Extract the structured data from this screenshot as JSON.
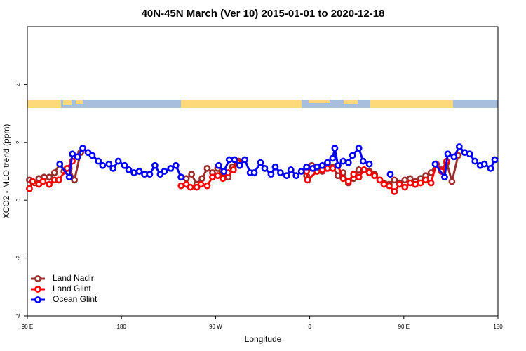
{
  "chart_data": {
    "type": "line",
    "title": "40N-45N March (Ver 10)   2015-01-01 to 2020-12-18",
    "xlabel": "Longitude",
    "ylabel": "XCO2 - MLO trend (ppm)",
    "xlim": [
      90,
      540
    ],
    "ylim": [
      -4,
      6
    ],
    "xticks": [
      {
        "value": 90,
        "label": "90 E"
      },
      180,
      {
        "value": 270,
        "label": "90 W"
      },
      {
        "value": 360,
        "label": "0"
      },
      {
        "value": 450,
        "label": "90 E"
      },
      {
        "value": 540,
        "label": "180"
      }
    ],
    "yticks": [
      -4,
      -2,
      0,
      2,
      4
    ],
    "legend": "bottom-left",
    "series": [
      {
        "name": "Land Nadir",
        "color": "#9b2d2d",
        "x": [
          92,
          97,
          101,
          106,
          111,
          116,
          121,
          125,
          130,
          135,
          141,
          190,
          237,
          242,
          247,
          252,
          257,
          262,
          267,
          272,
          277,
          282,
          286,
          292,
          320,
          357,
          362,
          367,
          372,
          377,
          382,
          387,
          392,
          397,
          402,
          407,
          412,
          417,
          422,
          427,
          431,
          436,
          441,
          446,
          451,
          456,
          461,
          466,
          471,
          476,
          481,
          486,
          491,
          496,
          502
        ],
        "values": [
          0.7,
          0.6,
          0.75,
          0.8,
          0.8,
          0.95,
          1.25,
          1.0,
          1.1,
          0.7,
          1.65,
          null,
          0.8,
          0.75,
          0.9,
          0.55,
          0.75,
          1.1,
          0.95,
          1.1,
          0.8,
          0.8,
          1.15,
          1.35,
          null,
          0.85,
          1.2,
          1.05,
          1.0,
          1.1,
          1.15,
          0.85,
          0.95,
          0.6,
          0.75,
          1.05,
          1.05,
          1.0,
          0.9,
          0.7,
          0.6,
          0.55,
          0.7,
          0.6,
          0.7,
          0.75,
          0.65,
          0.75,
          0.85,
          0.95,
          1.25,
          1.05,
          1.3,
          0.65,
          1.55
        ]
      },
      {
        "name": "Land Glint",
        "color": "#ff0000",
        "x": [
          92,
          95,
          101,
          105,
          111,
          116,
          120,
          128,
          133,
          190,
          237,
          242,
          246,
          252,
          256,
          262,
          267,
          272,
          277,
          282,
          287,
          291,
          320,
          357,
          358,
          367,
          372,
          377,
          382,
          387,
          392,
          397,
          402,
          407,
          412,
          417,
          422,
          427,
          431,
          436,
          441,
          446,
          451,
          456,
          461,
          466,
          471,
          476,
          481,
          486,
          491
        ],
        "values": [
          0.4,
          0.65,
          0.55,
          0.65,
          0.55,
          0.7,
          0.7,
          1.1,
          1.35,
          null,
          0.5,
          0.55,
          0.45,
          0.45,
          0.55,
          0.5,
          0.8,
          0.85,
          0.75,
          0.95,
          1.05,
          1.3,
          null,
          1.0,
          0.7,
          1.0,
          1.05,
          1.1,
          1.1,
          1.2,
          0.75,
          0.65,
          0.9,
          0.8,
          1.05,
          0.95,
          0.85,
          0.7,
          0.55,
          0.5,
          0.3,
          0.55,
          0.45,
          0.6,
          0.55,
          0.6,
          0.7,
          0.6,
          1.25,
          1.0,
          1.35
        ]
      },
      {
        "name": "Ocean Glint",
        "color": "#0000ff",
        "x": [
          121,
          130,
          133,
          138,
          143,
          148,
          152,
          158,
          162,
          168,
          172,
          177,
          183,
          187,
          192,
          197,
          202,
          207,
          212,
          217,
          221,
          227,
          232,
          237,
          255,
          273,
          278,
          283,
          288,
          293,
          298,
          303,
          307,
          313,
          317,
          323,
          327,
          332,
          338,
          342,
          347,
          352,
          357,
          363,
          367,
          372,
          377,
          382,
          384,
          387,
          392,
          397,
          401,
          407,
          411,
          417,
          427,
          437,
          460,
          480,
          489,
          492,
          498,
          503,
          508,
          513,
          518,
          523,
          527,
          533,
          537
        ],
        "values": [
          1.25,
          0.8,
          1.6,
          1.5,
          1.8,
          1.65,
          1.55,
          1.35,
          1.2,
          1.25,
          1.1,
          1.35,
          1.2,
          1.05,
          0.95,
          1.0,
          0.9,
          0.9,
          1.2,
          0.9,
          1.0,
          1.1,
          1.2,
          0.8,
          null,
          1.2,
          1.0,
          1.4,
          1.4,
          1.2,
          1.4,
          0.95,
          0.95,
          1.3,
          1.1,
          0.9,
          1.15,
          0.95,
          0.85,
          1.05,
          0.85,
          1.0,
          1.15,
          1.1,
          1.15,
          1.2,
          1.3,
          1.45,
          1.8,
          1.2,
          1.35,
          1.3,
          1.55,
          1.8,
          1.35,
          1.25,
          null,
          0.9,
          null,
          1.25,
          0.8,
          1.6,
          1.5,
          1.85,
          1.65,
          1.6,
          1.35,
          1.2,
          1.25,
          1.1,
          1.4
        ]
      }
    ]
  }
}
